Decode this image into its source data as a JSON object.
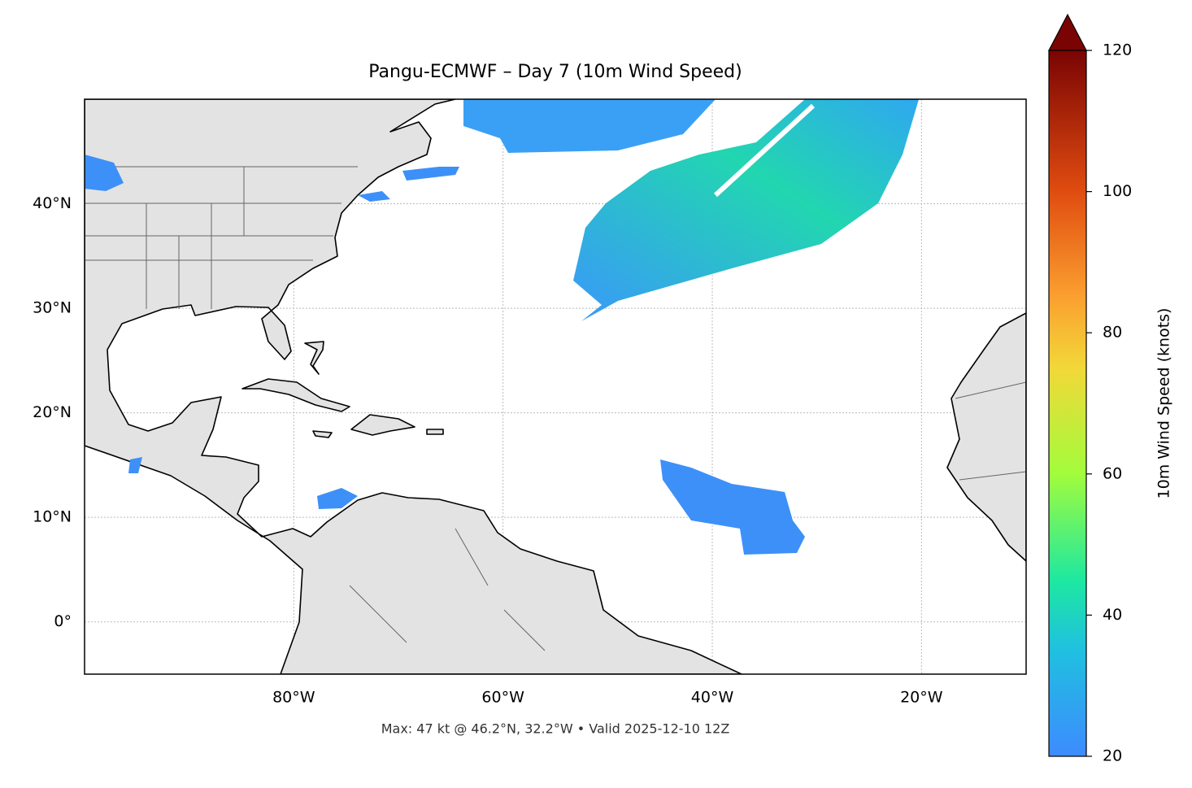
{
  "map": {
    "title": "Pangu-ECMWF – Day 7 (10m Wind Speed)",
    "footer": "Max: 47 kt @ 46.2°N, 32.2°W • Valid 2025-12-10 12Z",
    "xlim": [
      -100,
      -10
    ],
    "ylim": [
      -5,
      50
    ],
    "xticks": [
      {
        "value": -80,
        "label": "80°W"
      },
      {
        "value": -60,
        "label": "60°W"
      },
      {
        "value": -40,
        "label": "40°W"
      },
      {
        "value": -20,
        "label": "20°W"
      }
    ],
    "yticks": [
      {
        "value": 0,
        "label": "0°"
      },
      {
        "value": 10,
        "label": "10°N"
      },
      {
        "value": 20,
        "label": "20°N"
      },
      {
        "value": 30,
        "label": "30°N"
      },
      {
        "value": 40,
        "label": "40°N"
      }
    ],
    "grid": true,
    "colorbar": {
      "label": "10m Wind Speed (knots)",
      "lim": [
        20,
        120
      ],
      "ticks": [
        20,
        40,
        60,
        80,
        100,
        120
      ]
    }
  }
}
